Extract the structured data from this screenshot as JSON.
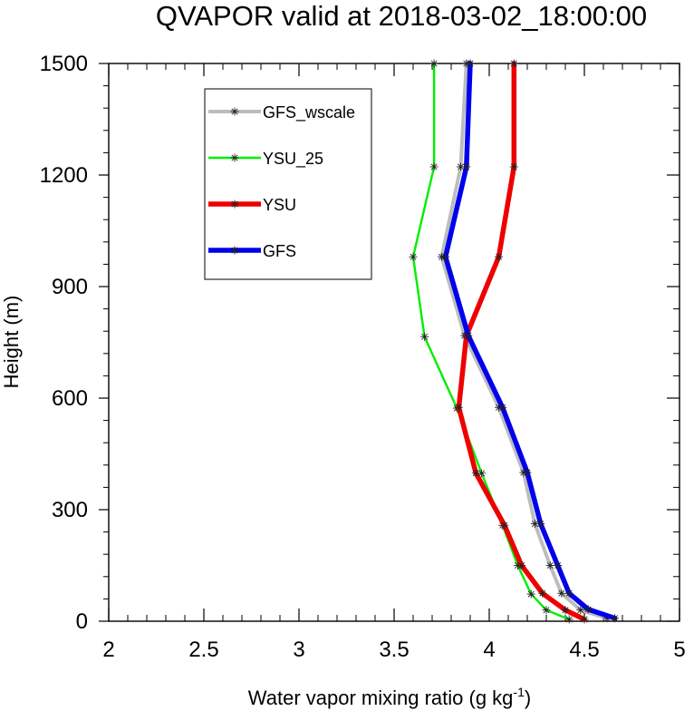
{
  "chart_data": {
    "type": "line",
    "title": "QVAPOR valid at 2018-03-02_18:00:00",
    "xlabel": "Water vapor mixing ratio (g kg",
    "xlabel_superscript": "-1",
    "xlabel_suffix": ")",
    "ylabel": "Height (m)",
    "xlim": [
      2,
      5
    ],
    "ylim": [
      0,
      1500
    ],
    "xticks": [
      2,
      2.5,
      3,
      3.5,
      4,
      4.5,
      5
    ],
    "xtick_labels": [
      "2",
      "2.5",
      "3",
      "3.5",
      "4",
      "4.5",
      "5"
    ],
    "yticks": [
      0,
      300,
      600,
      900,
      1200,
      1500
    ],
    "ytick_labels": [
      "0",
      "300",
      "600",
      "900",
      "1200",
      "1500"
    ],
    "legend_position": "top-left",
    "series": [
      {
        "name": "GFS_wscale",
        "color": "#bdbdbd",
        "marker": "asterisk",
        "points": [
          [
            4.62,
            8
          ],
          [
            4.48,
            30
          ],
          [
            4.38,
            75
          ],
          [
            4.32,
            150
          ],
          [
            4.24,
            262
          ],
          [
            4.18,
            400
          ],
          [
            4.05,
            575
          ],
          [
            3.87,
            768
          ],
          [
            3.75,
            980
          ],
          [
            3.85,
            1222
          ],
          [
            3.88,
            1500
          ]
        ]
      },
      {
        "name": "YSU_25",
        "color": "#00ee00",
        "marker": "asterisk",
        "points": [
          [
            4.42,
            5
          ],
          [
            4.3,
            30
          ],
          [
            4.22,
            73
          ],
          [
            4.15,
            150
          ],
          [
            4.07,
            258
          ],
          [
            3.96,
            398
          ],
          [
            3.83,
            573
          ],
          [
            3.66,
            765
          ],
          [
            3.6,
            980
          ],
          [
            3.71,
            1222
          ],
          [
            3.71,
            1500
          ]
        ]
      },
      {
        "name": "YSU",
        "color": "#ee0000",
        "marker": "asterisk",
        "points": [
          [
            4.5,
            5
          ],
          [
            4.4,
            30
          ],
          [
            4.28,
            75
          ],
          [
            4.17,
            150
          ],
          [
            4.08,
            258
          ],
          [
            3.93,
            398
          ],
          [
            3.84,
            575
          ],
          [
            3.88,
            768
          ],
          [
            4.05,
            980
          ],
          [
            4.13,
            1222
          ],
          [
            4.13,
            1500
          ]
        ]
      },
      {
        "name": "GFS",
        "color": "#0000ee",
        "marker": "asterisk",
        "points": [
          [
            4.66,
            8
          ],
          [
            4.52,
            32
          ],
          [
            4.42,
            75
          ],
          [
            4.36,
            150
          ],
          [
            4.27,
            262
          ],
          [
            4.2,
            400
          ],
          [
            4.07,
            575
          ],
          [
            3.89,
            768
          ],
          [
            3.77,
            980
          ],
          [
            3.88,
            1222
          ],
          [
            3.9,
            1500
          ]
        ]
      }
    ]
  }
}
